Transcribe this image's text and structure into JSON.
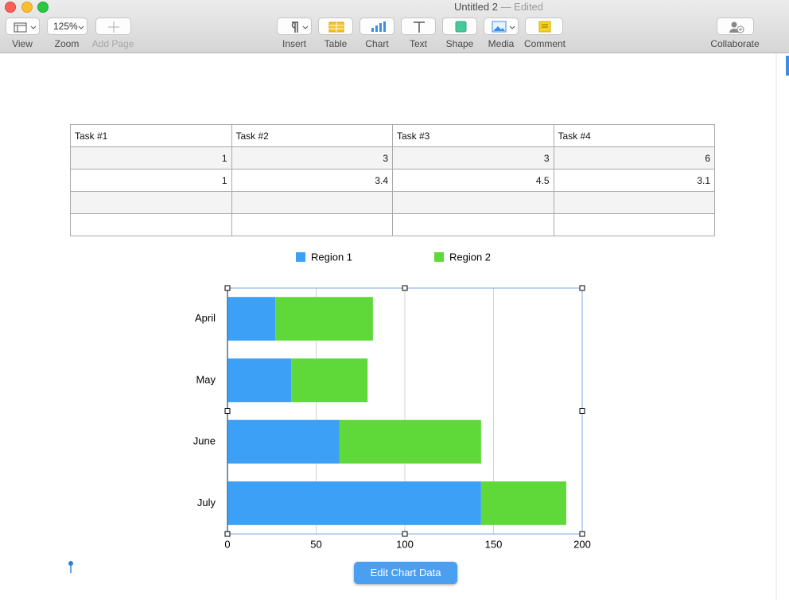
{
  "window": {
    "title": "Untitled 2",
    "status": "— Edited"
  },
  "toolbar": {
    "items": [
      "View",
      "Zoom",
      "Add Page",
      "Insert",
      "Table",
      "Chart",
      "Text",
      "Shape",
      "Media",
      "Comment",
      "Collaborate"
    ],
    "zoom": "125%"
  },
  "table": {
    "header": [
      "Task #1",
      "Task #2",
      "Task #3",
      "Task #4"
    ],
    "rows": [
      [
        1,
        3,
        3,
        6
      ],
      [
        1,
        3.4,
        4.5,
        3.1
      ]
    ]
  },
  "chart_data": {
    "type": "bar",
    "orientation": "horizontal",
    "stacked": true,
    "categories": [
      "April",
      "May",
      "June",
      "July"
    ],
    "series": [
      {
        "name": "Region 1",
        "color": "#3ca0f7",
        "values": [
          27,
          36,
          63,
          143
        ]
      },
      {
        "name": "Region 2",
        "color": "#5fd93a",
        "values": [
          55,
          43,
          80,
          48
        ]
      }
    ],
    "xlim": [
      0,
      200
    ],
    "xticks": [
      0,
      50,
      100,
      150,
      200
    ],
    "grid": true,
    "legend": "top"
  },
  "button": "Edit Chart Data"
}
